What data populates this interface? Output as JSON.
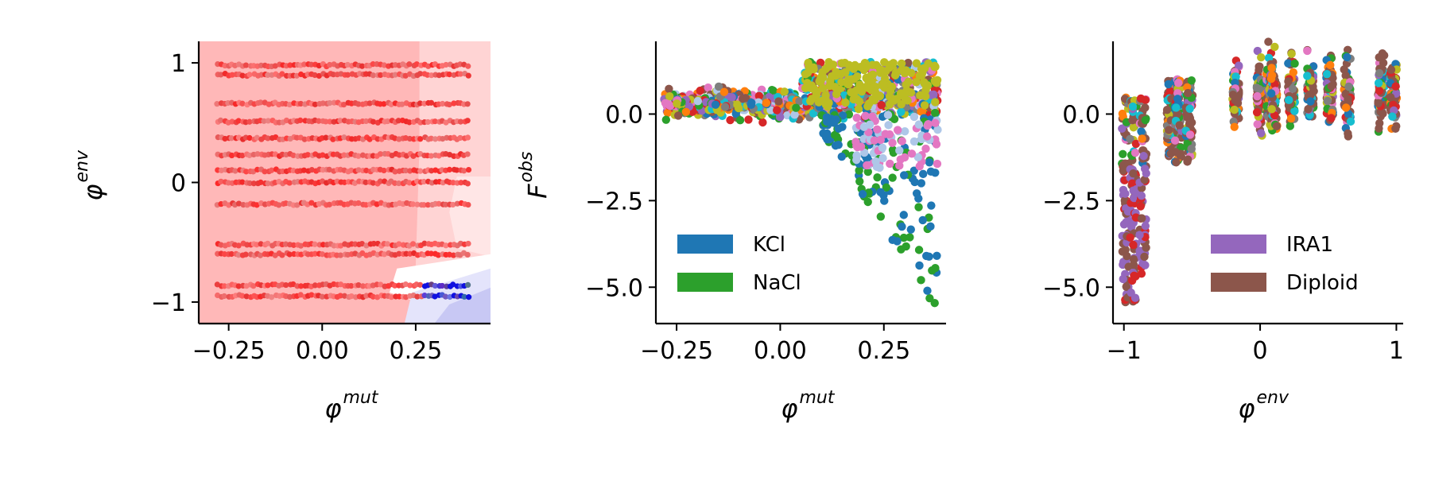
{
  "chart_data": [
    {
      "type": "heatmap",
      "xlabel": "φ",
      "xlabel_sup": "mut",
      "ylabel": "φ",
      "ylabel_sup": "env",
      "xlim": [
        -0.33,
        0.45
      ],
      "ylim": [
        -1.18,
        1.18
      ],
      "xticks": [
        -0.25,
        0.0,
        0.25
      ],
      "xtick_labels": [
        "−0.25",
        "0.00",
        "0.25"
      ],
      "yticks": [
        1,
        0,
        -1
      ],
      "ytick_labels": [
        "1",
        "0",
        "−1"
      ],
      "background_color": "#ffb8b8",
      "contour_regions": [
        {
          "color": "#ffd4d4",
          "points": [
            [
              0.26,
              1.18
            ],
            [
              0.45,
              1.18
            ],
            [
              0.45,
              -0.78
            ],
            [
              0.25,
              -0.7
            ],
            [
              0.26,
              0.3
            ]
          ]
        },
        {
          "color": "#ffe6e6",
          "points": [
            [
              0.36,
              0.05
            ],
            [
              0.45,
              0.05
            ],
            [
              0.45,
              -0.62
            ],
            [
              0.36,
              -0.55
            ],
            [
              0.34,
              -0.25
            ]
          ]
        },
        {
          "color": "#ffffff",
          "points": [
            [
              0.2,
              -0.72
            ],
            [
              0.45,
              -0.6
            ],
            [
              0.45,
              -0.95
            ],
            [
              0.3,
              -1.05
            ],
            [
              0.18,
              -0.92
            ]
          ]
        },
        {
          "color": "#e4e4fb",
          "points": [
            [
              0.24,
              -0.92
            ],
            [
              0.45,
              -0.72
            ],
            [
              0.45,
              -1.18
            ],
            [
              0.22,
              -1.18
            ]
          ]
        },
        {
          "color": "#c8c8f4",
          "points": [
            [
              0.34,
              -1.02
            ],
            [
              0.45,
              -0.88
            ],
            [
              0.45,
              -1.18
            ],
            [
              0.3,
              -1.18
            ]
          ]
        }
      ],
      "y_levels": [
        0.98,
        0.9,
        0.66,
        0.51,
        0.37,
        0.23,
        0.1,
        0.0,
        -0.18,
        -0.52,
        -0.6,
        -0.86,
        -0.95
      ],
      "x_range": [
        -0.28,
        0.39
      ],
      "color_rule": "red points across most of the grid; blue points where x > 0.27 and y < -0.85"
    },
    {
      "type": "scatter",
      "xlabel": "φ",
      "xlabel_sup": "mut",
      "ylabel": "F",
      "ylabel_sup": "obs",
      "xlim": [
        -0.3,
        0.4
      ],
      "ylim": [
        -6.05,
        2.1
      ],
      "xticks": [
        -0.25,
        0.0,
        0.25
      ],
      "xtick_labels": [
        "−0.25",
        "0.00",
        "0.25"
      ],
      "yticks": [
        0.0,
        -2.5,
        -5.0
      ],
      "ytick_labels": [
        "0.0",
        "−2.5",
        "−5.0"
      ],
      "legend": [
        {
          "label": "KCl",
          "color": "#1f77b4"
        },
        {
          "label": "NaCl",
          "color": "#2ca02c"
        }
      ],
      "legend_position": "lower-left",
      "series_colors": [
        "#1f77b4",
        "#ff7f0e",
        "#2ca02c",
        "#d62728",
        "#9467bd",
        "#8c564b",
        "#e377c2",
        "#7f7f7f",
        "#bcbd22",
        "#17becf",
        "#aec7e8"
      ],
      "x_range": [
        -0.28,
        0.38
      ],
      "baseline_band": [
        -0.2,
        0.8
      ],
      "tail_start_x": 0.1,
      "tail_min_y": -5.6
    },
    {
      "type": "scatter",
      "xlabel": "φ",
      "xlabel_sup": "env",
      "ylabel": "",
      "xlim": [
        -1.08,
        1.05
      ],
      "ylim": [
        -6.05,
        2.1
      ],
      "xticks": [
        -1,
        0,
        1
      ],
      "xtick_labels": [
        "−1",
        "0",
        "1"
      ],
      "yticks": [
        0.0,
        -2.5,
        -5.0
      ],
      "ytick_labels": [
        "0.0",
        "−2.5",
        "−5.0"
      ],
      "legend": [
        {
          "label": "IRA1",
          "color": "#9467bd"
        },
        {
          "label": "Diploid",
          "color": "#8c564b"
        }
      ],
      "legend_position": "lower-right",
      "x_groups": [
        -0.99,
        -0.93,
        -0.86,
        -0.66,
        -0.6,
        -0.52,
        -0.18,
        0.0,
        0.07,
        0.1,
        0.23,
        0.37,
        0.51,
        0.64,
        0.89,
        0.98
      ],
      "series_colors": [
        "#1f77b4",
        "#ff7f0e",
        "#2ca02c",
        "#d62728",
        "#9467bd",
        "#8c564b",
        "#e377c2",
        "#7f7f7f",
        "#bcbd22",
        "#17becf"
      ]
    }
  ]
}
